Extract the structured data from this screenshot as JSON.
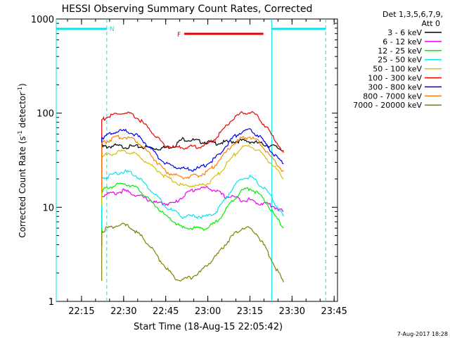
{
  "chart_data": {
    "type": "line",
    "title": "HESSI Observing Summary Count Rates, Corrected",
    "xlabel": "Start Time (18-Aug-15 22:05:42)",
    "ylabel_main": "Corrected Count Rate (s",
    "ylabel_sup1": "-1",
    "ylabel_mid": " detector",
    "ylabel_sup2": "-1",
    "ylabel_end": ")",
    "y_scale": "log",
    "ylim": [
      1,
      1000
    ],
    "xlim_minutes": [
      22.1,
      23.77
    ],
    "x_ticks": [
      {
        "t": 22.25,
        "label": "22:15"
      },
      {
        "t": 22.5,
        "label": "22:30"
      },
      {
        "t": 22.75,
        "label": "22:45"
      },
      {
        "t": 23.0,
        "label": "23:00"
      },
      {
        "t": 23.25,
        "label": "23:15"
      },
      {
        "t": 23.5,
        "label": "23:30"
      },
      {
        "t": 23.75,
        "label": "23:45"
      }
    ],
    "y_ticks": [
      {
        "v": 1,
        "label": "1"
      },
      {
        "v": 10,
        "label": "10"
      },
      {
        "v": 100,
        "label": "100"
      },
      {
        "v": 1000,
        "label": "1000"
      }
    ],
    "legend_header": [
      "Det 1,3,5,6,7,9,",
      "Att 0"
    ],
    "legend_position": "right",
    "attenuator_bars": [
      {
        "label": "N",
        "from": 22.1,
        "to": 22.4,
        "color": "#00e5ee"
      },
      {
        "label": "",
        "from": 23.38,
        "to": 23.7,
        "color": "#00e5ee"
      }
    ],
    "flare_bar": {
      "label": "F",
      "from": 22.86,
      "to": 23.33,
      "color": "#ee0000"
    },
    "vlines": [
      {
        "t": 22.1,
        "style": "solid",
        "color": "#00e5ee"
      },
      {
        "t": 22.4,
        "style": "dashed",
        "color": "#00e5ee"
      },
      {
        "t": 23.38,
        "style": "solid",
        "color": "#00e5ee"
      },
      {
        "t": 23.7,
        "style": "dashed",
        "color": "#00e5ee"
      }
    ],
    "x": [
      22.37,
      22.4,
      22.45,
      22.5,
      22.55,
      22.6,
      22.65,
      22.7,
      22.75,
      22.8,
      22.85,
      22.9,
      22.95,
      23.0,
      23.05,
      23.1,
      23.15,
      23.2,
      23.25,
      23.3,
      23.35,
      23.4,
      23.45
    ],
    "series": [
      {
        "name": "3 - 6 keV",
        "color": "#000000",
        "values": [
          44,
          44,
          45,
          44,
          44,
          44,
          43,
          42,
          43,
          45,
          53,
          52,
          50,
          49,
          48,
          49,
          50,
          51,
          50,
          48,
          46,
          44,
          40
        ]
      },
      {
        "name": "6 - 12 keV",
        "color": "#ee00ee",
        "values": [
          13,
          14,
          14,
          15,
          14,
          13,
          12,
          11,
          11,
          11,
          13,
          15,
          16,
          16,
          15,
          13,
          13,
          12,
          12,
          11,
          11,
          10,
          9
        ]
      },
      {
        "name": "12 - 25 keV",
        "color": "#00ee00",
        "values": [
          15,
          16,
          17,
          18,
          17,
          15,
          12,
          10,
          8,
          7,
          6,
          6,
          6,
          6,
          7,
          9,
          12,
          15,
          16,
          14,
          11,
          8,
          6
        ]
      },
      {
        "name": "25 - 50 keV",
        "color": "#00e5ee",
        "values": [
          20,
          21,
          23,
          24,
          23,
          20,
          16,
          13,
          10,
          9,
          8,
          8,
          8,
          8,
          9,
          12,
          16,
          20,
          21,
          18,
          15,
          11,
          8
        ]
      },
      {
        "name": "50 - 100 keV",
        "color": "#d8c000",
        "values": [
          35,
          36,
          38,
          39,
          38,
          34,
          29,
          25,
          21,
          19,
          17,
          17,
          17,
          18,
          21,
          27,
          35,
          43,
          45,
          40,
          33,
          26,
          20
        ]
      },
      {
        "name": "100 - 300 keV",
        "color": "#ee0000",
        "values": [
          85,
          90,
          97,
          100,
          96,
          84,
          68,
          55,
          45,
          43,
          43,
          44,
          44,
          47,
          55,
          70,
          88,
          100,
          103,
          90,
          70,
          52,
          38
        ]
      },
      {
        "name": "300 - 800 keV",
        "color": "#0000ee",
        "values": [
          55,
          58,
          63,
          65,
          62,
          54,
          44,
          35,
          29,
          27,
          26,
          25,
          26,
          29,
          34,
          43,
          55,
          64,
          66,
          58,
          46,
          35,
          29
        ]
      },
      {
        "name": "800 - 7000 keV",
        "color": "#ff7f00",
        "values": [
          48,
          50,
          55,
          56,
          54,
          47,
          38,
          30,
          24,
          22,
          21,
          21,
          22,
          24,
          29,
          37,
          47,
          54,
          56,
          50,
          39,
          30,
          24
        ]
      },
      {
        "name": "7000 - 20000 keV",
        "color": "#808000",
        "values": [
          5.5,
          6,
          6.3,
          6.5,
          6,
          5,
          4,
          3,
          2.3,
          1.8,
          1.7,
          1.8,
          2,
          2.5,
          3,
          4,
          5,
          6,
          6,
          5,
          3.5,
          2.3,
          1.6
        ]
      }
    ]
  },
  "footer": {
    "date_stamp": "7-Aug-2017 18:28"
  }
}
